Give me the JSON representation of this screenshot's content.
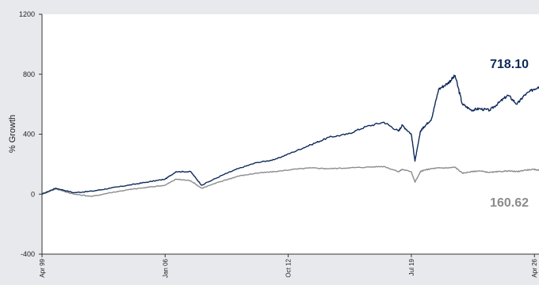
{
  "chart_data": {
    "type": "line",
    "ylabel": "% Growth",
    "ylim": [
      -400,
      1200
    ],
    "yticks": [
      -400,
      0,
      400,
      800,
      1200
    ],
    "xlim": [
      "1999-04",
      "2026-07"
    ],
    "xticks": [
      "Apr 99",
      "Jan 06",
      "Oct 12",
      "Jul 19",
      "Apr 26"
    ],
    "grid": false,
    "series": [
      {
        "color": "#0e2a5a",
        "end_label": "718.10",
        "x": [
          1999.25,
          2000.0,
          2001.0,
          2002.0,
          2003.0,
          2004.0,
          2005.0,
          2006.0,
          2006.6,
          2007.4,
          2008.0,
          2009.2,
          2010.0,
          2011.0,
          2012.0,
          2013.0,
          2014.0,
          2015.0,
          2016.0,
          2017.0,
          2018.0,
          2018.8,
          2019.0,
          2019.5,
          2019.7,
          2020.0,
          2020.2,
          2020.6,
          2021.0,
          2021.5,
          2021.9,
          2022.3,
          2022.8,
          2023.2,
          2023.8,
          2024.3,
          2024.8,
          2025.3,
          2025.7,
          2026.2,
          2026.5
        ],
        "values": [
          0,
          40,
          10,
          20,
          40,
          60,
          80,
          100,
          150,
          150,
          60,
          130,
          170,
          210,
          230,
          280,
          330,
          380,
          400,
          450,
          480,
          420,
          460,
          400,
          220,
          420,
          450,
          500,
          700,
          740,
          790,
          600,
          560,
          570,
          560,
          610,
          660,
          600,
          660,
          700,
          718.1
        ]
      },
      {
        "color": "#8c8c8c",
        "end_label": "160.62",
        "x": [
          1999.25,
          2000.0,
          2001.0,
          2002.0,
          2003.0,
          2004.0,
          2005.0,
          2006.0,
          2006.6,
          2007.4,
          2008.0,
          2009.2,
          2010.0,
          2011.0,
          2012.0,
          2013.0,
          2014.0,
          2015.0,
          2016.0,
          2017.0,
          2018.0,
          2018.8,
          2019.0,
          2019.5,
          2019.7,
          2020.0,
          2020.2,
          2020.6,
          2021.0,
          2021.5,
          2021.9,
          2022.3,
          2022.8,
          2023.2,
          2023.8,
          2024.3,
          2024.8,
          2025.3,
          2025.7,
          2026.2,
          2026.5
        ],
        "values": [
          0,
          35,
          0,
          -15,
          10,
          30,
          45,
          60,
          100,
          90,
          40,
          90,
          120,
          140,
          150,
          165,
          175,
          170,
          175,
          180,
          185,
          150,
          165,
          150,
          80,
          150,
          160,
          170,
          175,
          175,
          180,
          140,
          150,
          155,
          145,
          150,
          155,
          150,
          160,
          165,
          160.62
        ]
      }
    ]
  }
}
